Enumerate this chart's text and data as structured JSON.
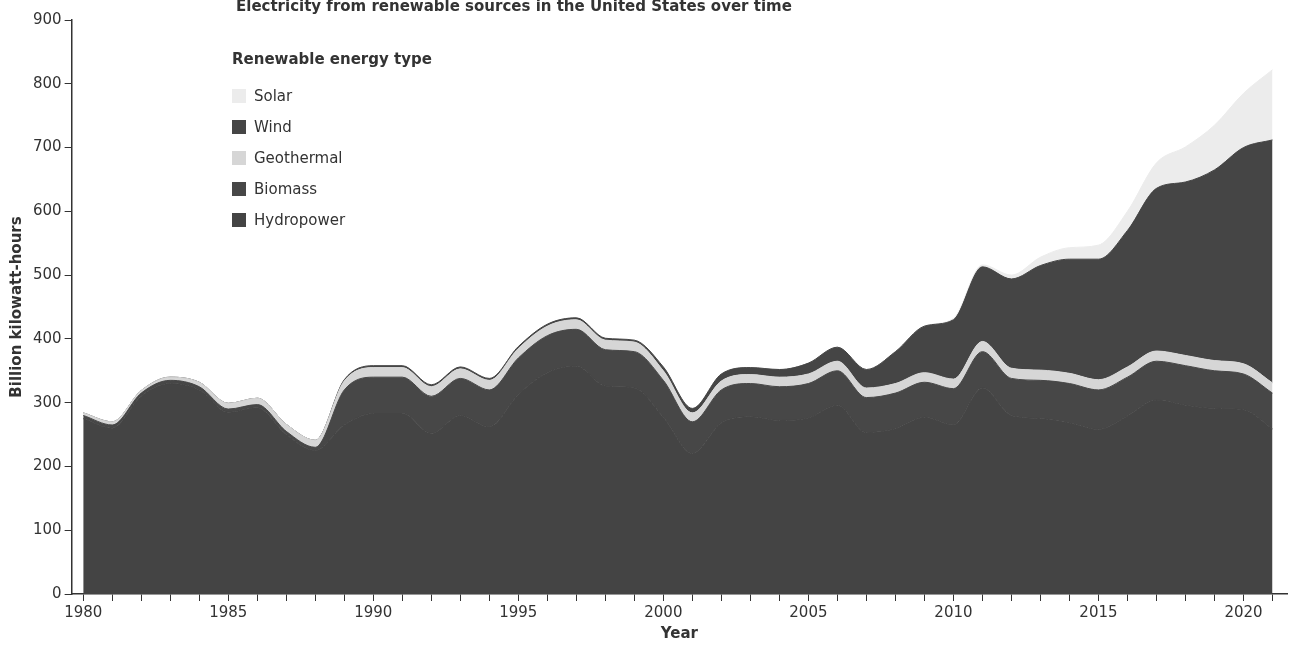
{
  "chart_data": {
    "type": "area",
    "stacked": true,
    "title": "Electricity from renewable sources in the United States over time",
    "xlabel": "Year",
    "ylabel": "Billion kilowatt-hours",
    "legend_title": "Renewable energy type",
    "legend": "top left",
    "grid": false,
    "marker": "none",
    "x": [
      1980,
      1981,
      1982,
      1983,
      1984,
      1985,
      1986,
      1987,
      1988,
      1989,
      1990,
      1991,
      1992,
      1993,
      1994,
      1995,
      1996,
      1997,
      1998,
      1999,
      2000,
      2001,
      2002,
      2003,
      2004,
      2005,
      2006,
      2007,
      2008,
      2009,
      2010,
      2011,
      2012,
      2013,
      2014,
      2015,
      2016,
      2017,
      2018,
      2019,
      2020,
      2021
    ],
    "xlim": [
      1979.6,
      2021.5
    ],
    "xticks": [
      1980,
      {
        "value": 1981,
        "label": null
      },
      {
        "value": 1982,
        "label": null
      },
      {
        "value": 1983,
        "label": null
      },
      {
        "value": 1984,
        "label": null
      },
      1985,
      {
        "value": 1986,
        "label": null
      },
      {
        "value": 1987,
        "label": null
      },
      {
        "value": 1988,
        "label": null
      },
      {
        "value": 1989,
        "label": null
      },
      1990,
      {
        "value": 1991,
        "label": null
      },
      {
        "value": 1992,
        "label": null
      },
      {
        "value": 1993,
        "label": null
      },
      {
        "value": 1994,
        "label": null
      },
      1995,
      {
        "value": 1996,
        "label": null
      },
      {
        "value": 1997,
        "label": null
      },
      {
        "value": 1998,
        "label": null
      },
      {
        "value": 1999,
        "label": null
      },
      2000,
      {
        "value": 2001,
        "label": null
      },
      {
        "value": 2002,
        "label": null
      },
      {
        "value": 2003,
        "label": null
      },
      {
        "value": 2004,
        "label": null
      },
      2005,
      {
        "value": 2006,
        "label": null
      },
      {
        "value": 2007,
        "label": null
      },
      {
        "value": 2008,
        "label": null
      },
      {
        "value": 2009,
        "label": null
      },
      2010,
      {
        "value": 2011,
        "label": null
      },
      {
        "value": 2012,
        "label": null
      },
      {
        "value": 2013,
        "label": null
      },
      {
        "value": 2014,
        "label": null
      },
      2015,
      {
        "value": 2016,
        "label": null
      },
      {
        "value": 2017,
        "label": null
      },
      {
        "value": 2018,
        "label": null
      },
      {
        "value": 2019,
        "label": null
      },
      2020,
      {
        "value": 2021,
        "label": null
      }
    ],
    "ylim": [
      0,
      900
    ],
    "yticks": [
      0,
      100,
      200,
      300,
      400,
      500,
      600,
      700,
      800,
      900
    ],
    "series": [
      {
        "name": "Hydropower",
        "color": "#444444",
        "values": [
          275,
          260,
          310,
          330,
          320,
          285,
          292,
          250,
          225,
          265,
          283,
          283,
          252,
          280,
          262,
          313,
          347,
          357,
          326,
          323,
          277,
          220,
          268,
          278,
          272,
          276,
          296,
          253,
          259,
          277,
          265,
          323,
          280,
          275,
          268,
          258,
          279,
          304,
          296,
          291,
          289,
          259
        ]
      },
      {
        "name": "Biomass",
        "color": "#474747",
        "values": [
          5,
          5,
          5,
          5,
          5,
          5,
          5,
          5,
          5,
          55,
          57,
          57,
          58,
          58,
          58,
          57,
          58,
          58,
          57,
          57,
          58,
          50,
          52,
          52,
          53,
          54,
          54,
          55,
          56,
          55,
          57,
          57,
          58,
          60,
          62,
          62,
          61,
          61,
          62,
          59,
          56,
          56
        ]
      },
      {
        "name": "Geothermal",
        "color": "#d6d6d6",
        "values": [
          4,
          5,
          4,
          5,
          7,
          9,
          10,
          11,
          11,
          14,
          15,
          15,
          15,
          15,
          15,
          15,
          15,
          15,
          15,
          15,
          15,
          14,
          14,
          14,
          15,
          15,
          15,
          15,
          15,
          15,
          15,
          16,
          16,
          16,
          16,
          16,
          16,
          16,
          16,
          16,
          16,
          16
        ]
      },
      {
        "name": "Wind",
        "color": "#454545",
        "values": [
          0,
          0,
          0,
          0,
          0,
          0,
          0,
          0,
          0,
          2,
          3,
          3,
          3,
          3,
          3,
          3,
          3,
          3,
          3,
          3,
          6,
          7,
          11,
          11,
          12,
          17,
          22,
          29,
          50,
          73,
          93,
          117,
          140,
          164,
          179,
          189,
          214,
          255,
          272,
          299,
          339,
          381
        ]
      },
      {
        "name": "Solar",
        "color": "#ececec",
        "values": [
          0,
          0,
          0,
          0,
          0,
          0,
          0,
          0,
          0,
          0,
          0,
          0,
          0,
          0,
          0,
          0,
          0,
          0,
          0,
          0,
          0,
          0,
          0,
          0,
          0,
          0,
          0,
          0,
          0,
          0,
          2,
          3,
          6,
          13,
          18,
          22,
          30,
          40,
          55,
          70,
          85,
          110
        ]
      }
    ]
  }
}
